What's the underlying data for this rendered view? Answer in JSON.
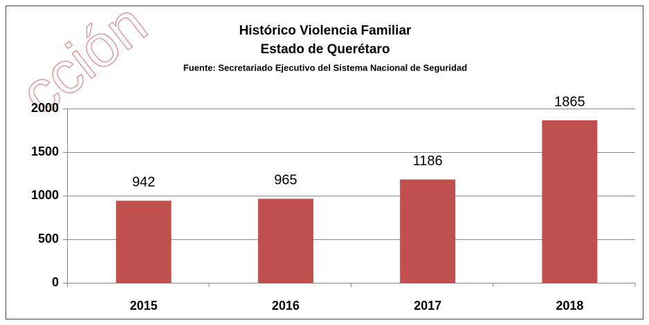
{
  "chart_data": {
    "type": "bar",
    "title": "Histórico Violencia Familiar",
    "subtitle": "Estado de Querétaro",
    "source": "Fuente: Secretariado Ejecutivo del Sistema Nacional de Seguridad",
    "watermark": "cción",
    "categories": [
      "2015",
      "2016",
      "2017",
      "2018"
    ],
    "values": [
      942,
      965,
      1186,
      1865
    ],
    "color": "#c0504d",
    "ylim": [
      0,
      2000
    ],
    "yticks": [
      0,
      500,
      1000,
      1500,
      2000
    ],
    "grid": true
  }
}
